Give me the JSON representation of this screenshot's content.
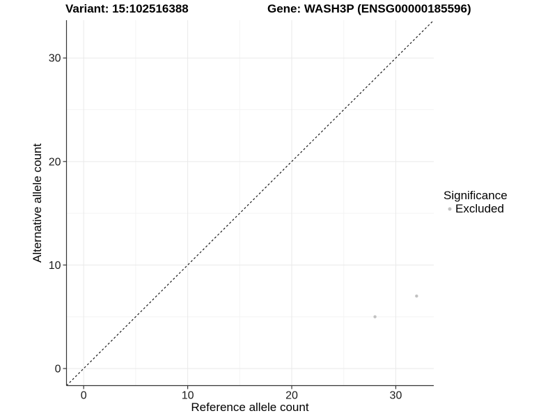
{
  "titles": {
    "variant": "Variant: 15:102516388",
    "gene": "Gene: WASH3P (ENSG00000185596)"
  },
  "chart_data": {
    "type": "scatter",
    "xlabel": "Reference allele count",
    "ylabel": "Alternative allele count",
    "xlim": [
      -1.65,
      33.65
    ],
    "ylim": [
      -1.65,
      33.65
    ],
    "x_ticks": [
      0,
      10,
      20,
      30
    ],
    "y_ticks": [
      0,
      10,
      20,
      30
    ],
    "x_minor_ticks": [
      5,
      15,
      25
    ],
    "y_minor_ticks": [
      5,
      15,
      25
    ],
    "grid": "major+minor",
    "reference_line": {
      "type": "identity",
      "slope": 1,
      "intercept": 0,
      "style": "dashed"
    },
    "series": [
      {
        "name": "Excluded",
        "color": "#c1c1c1",
        "point_radius": 2.2,
        "points": [
          {
            "x": 28,
            "y": 5
          },
          {
            "x": 32,
            "y": 7
          }
        ]
      }
    ],
    "legend": {
      "title": "Significance",
      "position": "right",
      "entries": [
        {
          "label": "Excluded",
          "color": "#c1c1c1"
        }
      ]
    }
  },
  "colors": {
    "background": "#ffffff",
    "axis_line": "#333333",
    "grid_major": "#e9e9e9",
    "grid_minor": "#f4f4f4",
    "tick_text": "#1a1a1a",
    "title_text": "#000000",
    "reference_line": "#1a1a1a"
  }
}
